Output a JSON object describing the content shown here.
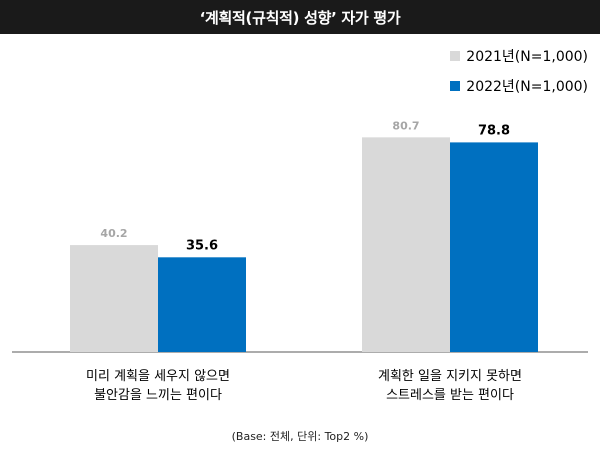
{
  "chart_data": {
    "type": "bar",
    "title": "‘계획적(규칙적) 성향’ 자가 평가",
    "categories": [
      [
        "미리 계획을 세우지 않으면",
        "불안감을 느끼는 편이다"
      ],
      [
        "계획한 일을 지키지 못하면",
        "스트레스를 받는 편이다"
      ]
    ],
    "series": [
      {
        "name": "2021년(N=1,000)",
        "values": [
          40.2,
          80.7
        ],
        "color": "#d9d9d9",
        "label_color": "#a6a6a6"
      },
      {
        "name": "2022년(N=1,000)",
        "values": [
          35.6,
          78.8
        ],
        "color": "#0070c0",
        "label_color": "#000000"
      }
    ],
    "ylim": [
      0,
      100
    ],
    "grid": false,
    "legend_position": "top-right",
    "note": "(Base: 전체, 단위: Top2 %)"
  }
}
